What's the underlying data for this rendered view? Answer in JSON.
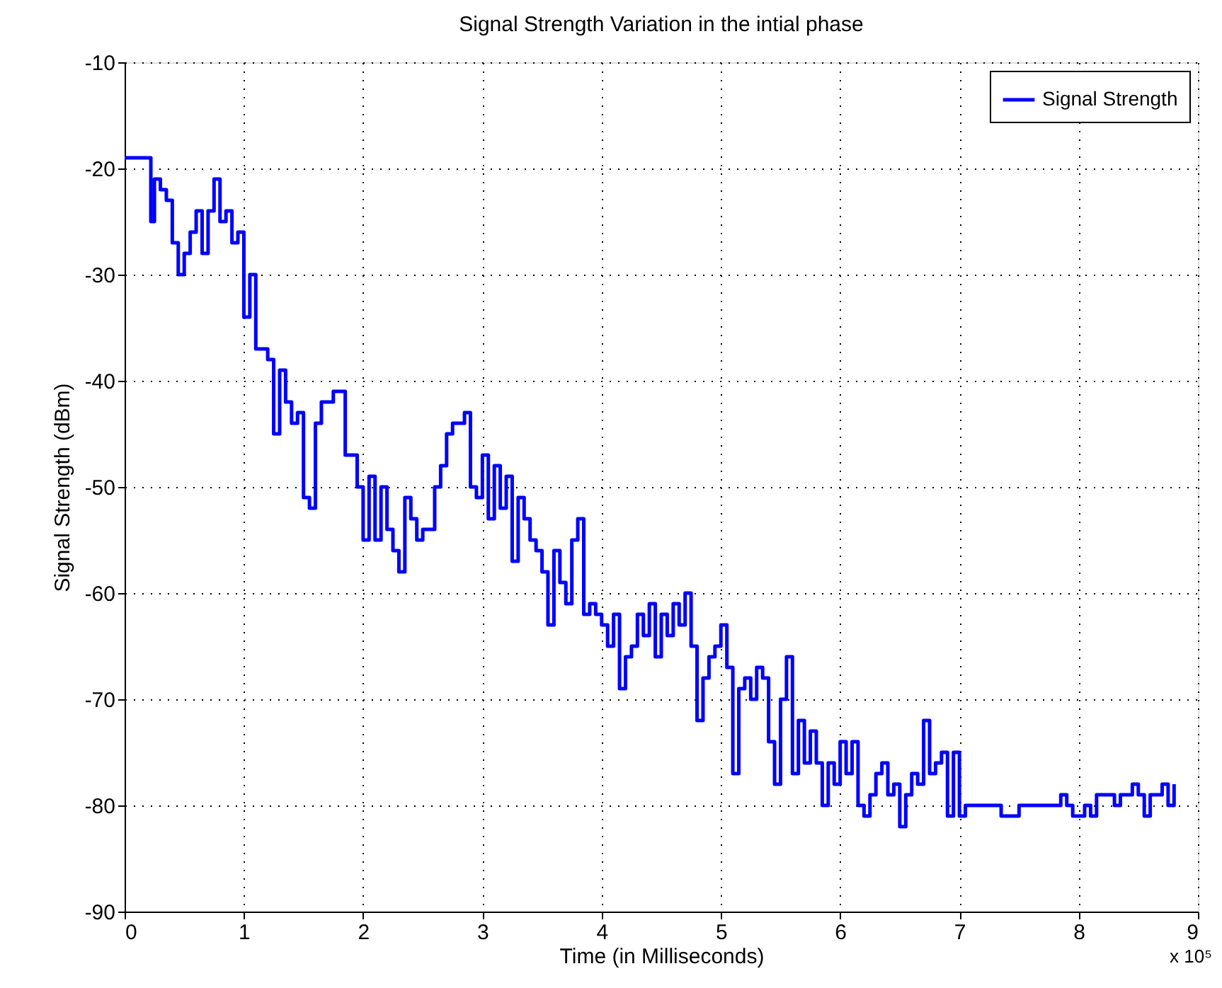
{
  "chart_data": {
    "type": "step",
    "title": "Signal Strength Variation in the intial phase",
    "xlabel": "Time (in Milliseconds)",
    "ylabel": "Signal Strength (dBm)",
    "annotations": [
      "x 10⁵"
    ],
    "xlim": [
      0,
      9
    ],
    "ylim": [
      -90,
      -10
    ],
    "xticks": [
      0,
      1,
      2,
      3,
      4,
      5,
      6,
      7,
      8,
      9
    ],
    "yticks": [
      -90,
      -80,
      -70,
      -60,
      -50,
      -40,
      -30,
      -20,
      -10
    ],
    "grid": true,
    "legend": "top right",
    "line_style": "solid",
    "x": [
      0,
      0.2,
      0.22,
      0.25,
      0.3,
      0.35,
      0.4,
      0.45,
      0.5,
      0.55,
      0.6,
      0.65,
      0.7,
      0.75,
      0.8,
      0.85,
      0.9,
      0.95,
      1.0,
      1.05,
      1.1,
      1.2,
      1.25,
      1.3,
      1.35,
      1.4,
      1.45,
      1.5,
      1.55,
      1.6,
      1.65,
      1.7,
      1.75,
      1.8,
      1.85,
      1.9,
      1.95,
      2.0,
      2.05,
      2.1,
      2.15,
      2.2,
      2.25,
      2.3,
      2.35,
      2.4,
      2.45,
      2.5,
      2.6,
      2.65,
      2.7,
      2.75,
      2.8,
      2.85,
      2.9,
      2.95,
      3.0,
      3.05,
      3.1,
      3.15,
      3.2,
      3.25,
      3.3,
      3.35,
      3.4,
      3.45,
      3.5,
      3.55,
      3.6,
      3.65,
      3.7,
      3.75,
      3.8,
      3.85,
      3.9,
      3.95,
      4.0,
      4.05,
      4.1,
      4.15,
      4.2,
      4.25,
      4.3,
      4.35,
      4.4,
      4.45,
      4.5,
      4.55,
      4.6,
      4.65,
      4.7,
      4.75,
      4.8,
      4.85,
      4.9,
      4.95,
      5.0,
      5.05,
      5.1,
      5.15,
      5.2,
      5.25,
      5.3,
      5.35,
      5.4,
      5.45,
      5.5,
      5.55,
      5.6,
      5.65,
      5.7,
      5.75,
      5.8,
      5.85,
      5.9,
      5.95,
      6.0,
      6.05,
      6.1,
      6.15,
      6.2,
      6.25,
      6.3,
      6.35,
      6.4,
      6.45,
      6.5,
      6.55,
      6.6,
      6.65,
      6.7,
      6.75,
      6.8,
      6.85,
      6.9,
      6.95,
      7.0,
      7.05,
      7.3,
      7.35,
      7.45,
      7.5,
      7.8,
      7.85,
      7.9,
      7.95,
      8.05,
      8.1,
      8.15,
      8.3,
      8.35,
      8.45,
      8.5,
      8.55,
      8.6,
      8.7,
      8.75,
      8.8
    ],
    "series": [
      {
        "name": "Signal Strength",
        "color": "#0000ff",
        "values": [
          -19,
          -19,
          -25,
          -21,
          -22,
          -23,
          -27,
          -30,
          -28,
          -26,
          -24,
          -28,
          -24,
          -21,
          -25,
          -24,
          -27,
          -26,
          -34,
          -30,
          -37,
          -38,
          -45,
          -39,
          -42,
          -44,
          -43,
          -51,
          -52,
          -44,
          -42,
          -42,
          -41,
          -41,
          -47,
          -47,
          -50,
          -55,
          -49,
          -55,
          -50,
          -54,
          -56,
          -58,
          -51,
          -53,
          -55,
          -54,
          -50,
          -48,
          -45,
          -44,
          -44,
          -43,
          -50,
          -51,
          -47,
          -53,
          -48,
          -52,
          -49,
          -57,
          -51,
          -53,
          -55,
          -56,
          -58,
          -63,
          -56,
          -59,
          -61,
          -55,
          -53,
          -62,
          -61,
          -62,
          -63,
          -65,
          -62,
          -69,
          -66,
          -65,
          -62,
          -64,
          -61,
          -66,
          -62,
          -64,
          -61,
          -63,
          -60,
          -65,
          -72,
          -68,
          -66,
          -65,
          -63,
          -67,
          -77,
          -69,
          -68,
          -70,
          -67,
          -68,
          -74,
          -78,
          -70,
          -66,
          -77,
          -72,
          -76,
          -73,
          -76,
          -80,
          -76,
          -78,
          -74,
          -77,
          -74,
          -80,
          -81,
          -79,
          -77,
          -76,
          -79,
          -78,
          -82,
          -79,
          -77,
          -78,
          -72,
          -77,
          -76,
          -75,
          -81,
          -75,
          -81,
          -80,
          -80,
          -81,
          -81,
          -80,
          -80,
          -79,
          -80,
          -81,
          -80,
          -81,
          -79,
          -80,
          -79,
          -78,
          -79,
          -81,
          -79,
          -78,
          -80,
          -78
        ]
      }
    ]
  }
}
